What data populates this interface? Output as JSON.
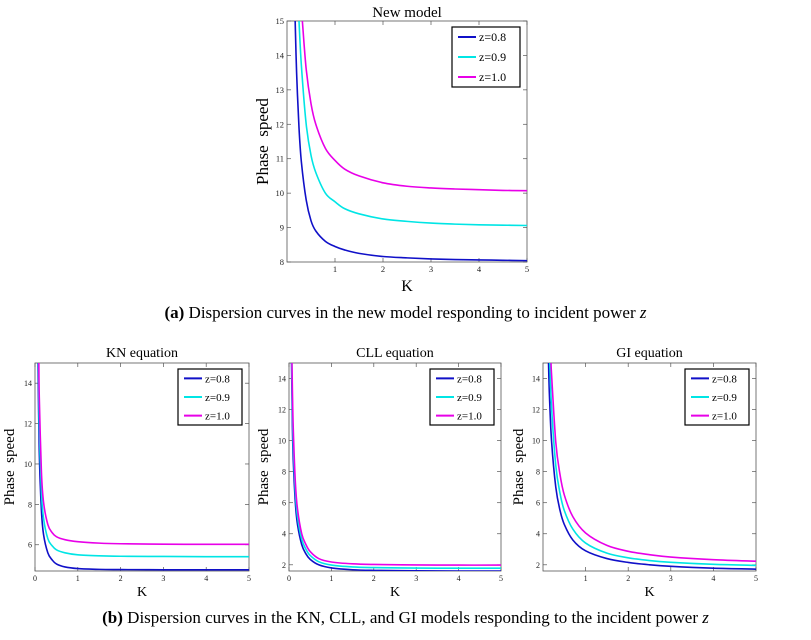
{
  "chart_data": [
    {
      "type": "line",
      "title": "New model",
      "xlabel": "K",
      "ylabel": "Phase  speed",
      "xlim": [
        0,
        5
      ],
      "ylim": [
        8,
        15
      ],
      "xticks": [
        1,
        2,
        3,
        4,
        5
      ],
      "yticks": [
        8,
        9,
        10,
        11,
        12,
        13,
        14,
        15
      ],
      "legend": {
        "position": "top-right",
        "entries": [
          "z=0.8",
          "z=0.9",
          "z=1.0"
        ]
      },
      "series": [
        {
          "name": "z=0.8",
          "color": "#1010c8",
          "x": [
            0.17,
            0.2,
            0.25,
            0.3,
            0.4,
            0.5,
            0.6,
            0.8,
            1.0,
            1.2,
            1.5,
            2.0,
            2.5,
            3.0,
            3.5,
            4.0,
            4.5,
            5.0
          ],
          "y": [
            15.0,
            13.5,
            11.9,
            10.9,
            9.8,
            9.2,
            8.9,
            8.6,
            8.45,
            8.35,
            8.25,
            8.16,
            8.12,
            8.09,
            8.07,
            8.06,
            8.05,
            8.04
          ]
        },
        {
          "name": "z=0.9",
          "color": "#00e5e5",
          "x": [
            0.25,
            0.3,
            0.4,
            0.5,
            0.6,
            0.8,
            1.0,
            1.2,
            1.5,
            2.0,
            2.5,
            3.0,
            3.5,
            4.0,
            4.5,
            5.0
          ],
          "y": [
            15.0,
            13.7,
            12.0,
            11.1,
            10.6,
            10.0,
            9.75,
            9.55,
            9.4,
            9.25,
            9.18,
            9.13,
            9.1,
            9.08,
            9.07,
            9.06
          ]
        },
        {
          "name": "z=1.0",
          "color": "#e800e8",
          "x": [
            0.32,
            0.4,
            0.5,
            0.6,
            0.8,
            1.0,
            1.2,
            1.5,
            2.0,
            2.5,
            3.0,
            3.5,
            4.0,
            4.5,
            5.0
          ],
          "y": [
            15.0,
            13.6,
            12.6,
            12.0,
            11.3,
            10.95,
            10.7,
            10.5,
            10.3,
            10.2,
            10.15,
            10.12,
            10.1,
            10.08,
            10.07
          ]
        }
      ]
    },
    {
      "type": "line",
      "title": "KN equation",
      "xlabel": "K",
      "ylabel": "Phase  speed",
      "xlim": [
        0,
        5
      ],
      "ylim": [
        4.7,
        15
      ],
      "xticks": [
        0,
        1,
        2,
        3,
        4,
        5
      ],
      "yticks": [
        6,
        8,
        10,
        12,
        14
      ],
      "legend": {
        "position": "top-right",
        "entries": [
          "z=0.8",
          "z=0.9",
          "z=1.0"
        ]
      },
      "series": [
        {
          "name": "z=0.8",
          "color": "#1010c8",
          "x": [
            0.07,
            0.1,
            0.15,
            0.2,
            0.3,
            0.4,
            0.5,
            0.7,
            1.0,
            1.5,
            2.0,
            3.0,
            4.0,
            5.0
          ],
          "y": [
            15.0,
            10.6,
            7.7,
            6.5,
            5.6,
            5.25,
            5.05,
            4.9,
            4.82,
            4.78,
            4.77,
            4.76,
            4.76,
            4.76
          ]
        },
        {
          "name": "z=0.9",
          "color": "#00e5e5",
          "x": [
            0.08,
            0.1,
            0.15,
            0.2,
            0.3,
            0.4,
            0.5,
            0.7,
            1.0,
            1.5,
            2.0,
            3.0,
            4.0,
            5.0
          ],
          "y": [
            15.0,
            12.0,
            8.6,
            7.3,
            6.3,
            5.95,
            5.75,
            5.6,
            5.5,
            5.45,
            5.43,
            5.42,
            5.41,
            5.41
          ]
        },
        {
          "name": "z=1.0",
          "color": "#e800e8",
          "x": [
            0.09,
            0.1,
            0.15,
            0.2,
            0.3,
            0.4,
            0.5,
            0.7,
            1.0,
            1.5,
            2.0,
            3.0,
            4.0,
            5.0
          ],
          "y": [
            15.0,
            13.3,
            9.6,
            8.1,
            7.0,
            6.6,
            6.4,
            6.25,
            6.15,
            6.08,
            6.05,
            6.03,
            6.02,
            6.02
          ]
        }
      ]
    },
    {
      "type": "line",
      "title": "CLL equation",
      "xlabel": "K",
      "ylabel": "Phase  speed",
      "xlim": [
        0,
        5
      ],
      "ylim": [
        1.6,
        15
      ],
      "xticks": [
        0,
        1,
        2,
        3,
        4,
        5
      ],
      "yticks": [
        2,
        4,
        6,
        8,
        10,
        12,
        14
      ],
      "legend": {
        "position": "top-right",
        "entries": [
          "z=0.8",
          "z=0.9",
          "z=1.0"
        ]
      },
      "series": [
        {
          "name": "z=0.8",
          "color": "#1010c8",
          "x": [
            0.06,
            0.08,
            0.1,
            0.15,
            0.2,
            0.3,
            0.4,
            0.5,
            0.7,
            1.0,
            1.5,
            2.0,
            3.0,
            4.0,
            5.0
          ],
          "y": [
            15.0,
            11.0,
            8.8,
            6.0,
            4.6,
            3.3,
            2.7,
            2.35,
            2.0,
            1.8,
            1.68,
            1.64,
            1.61,
            1.6,
            1.6
          ]
        },
        {
          "name": "z=0.9",
          "color": "#00e5e5",
          "x": [
            0.065,
            0.08,
            0.1,
            0.15,
            0.2,
            0.3,
            0.4,
            0.5,
            0.7,
            1.0,
            1.5,
            2.0,
            3.0,
            4.0,
            5.0
          ],
          "y": [
            15.0,
            12.2,
            9.8,
            6.7,
            5.1,
            3.65,
            3.0,
            2.6,
            2.2,
            1.98,
            1.86,
            1.82,
            1.79,
            1.78,
            1.78
          ]
        },
        {
          "name": "z=1.0",
          "color": "#e800e8",
          "x": [
            0.07,
            0.08,
            0.1,
            0.15,
            0.2,
            0.3,
            0.4,
            0.5,
            0.7,
            1.0,
            1.5,
            2.0,
            3.0,
            4.0,
            5.0
          ],
          "y": [
            15.0,
            13.3,
            10.8,
            7.3,
            5.6,
            4.0,
            3.3,
            2.85,
            2.4,
            2.18,
            2.06,
            2.02,
            1.99,
            1.98,
            1.98
          ]
        }
      ]
    },
    {
      "type": "line",
      "title": "GI equation",
      "xlabel": "K",
      "ylabel": "Phase  speed",
      "xlim": [
        0,
        5
      ],
      "ylim": [
        1.6,
        15
      ],
      "xticks": [
        1,
        2,
        3,
        4,
        5
      ],
      "yticks": [
        2,
        4,
        6,
        8,
        10,
        12,
        14
      ],
      "legend": {
        "position": "top-right",
        "entries": [
          "z=0.8",
          "z=0.9",
          "z=1.0"
        ]
      },
      "series": [
        {
          "name": "z=0.8",
          "color": "#1010c8",
          "x": [
            0.13,
            0.15,
            0.2,
            0.3,
            0.4,
            0.5,
            0.7,
            1.0,
            1.5,
            2.0,
            2.5,
            3.0,
            4.0,
            5.0
          ],
          "y": [
            15.0,
            13.0,
            10.0,
            7.0,
            5.5,
            4.6,
            3.6,
            2.9,
            2.4,
            2.15,
            2.0,
            1.9,
            1.78,
            1.72
          ]
        },
        {
          "name": "z=0.9",
          "color": "#00e5e5",
          "x": [
            0.16,
            0.2,
            0.3,
            0.4,
            0.5,
            0.7,
            1.0,
            1.5,
            2.0,
            2.5,
            3.0,
            4.0,
            5.0
          ],
          "y": [
            15.0,
            12.2,
            8.4,
            6.6,
            5.5,
            4.3,
            3.4,
            2.75,
            2.45,
            2.27,
            2.16,
            2.03,
            1.96
          ]
        },
        {
          "name": "z=1.0",
          "color": "#e800e8",
          "x": [
            0.19,
            0.2,
            0.3,
            0.4,
            0.5,
            0.7,
            1.0,
            1.5,
            2.0,
            2.5,
            3.0,
            4.0,
            5.0
          ],
          "y": [
            15.0,
            14.3,
            9.9,
            7.8,
            6.5,
            5.1,
            4.05,
            3.25,
            2.87,
            2.65,
            2.5,
            2.33,
            2.23
          ]
        }
      ]
    }
  ],
  "captions": {
    "a_label": "(a)",
    "a_text": "Dispersion curves in the new model responding to incident power",
    "a_var": "z",
    "b_label": "(b)",
    "b_text": "Dispersion curves in the KN, CLL, and GI models responding to the incident power",
    "b_var": "z"
  }
}
